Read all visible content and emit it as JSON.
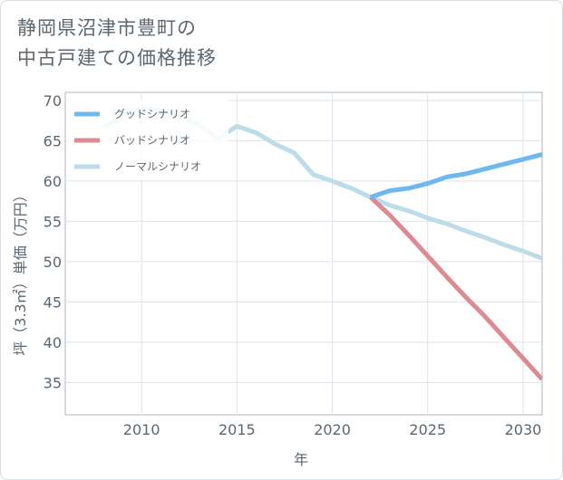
{
  "title": {
    "line1": "静岡県沼津市豊町の",
    "line2": "中古戸建ての価格推移"
  },
  "chart_data": {
    "type": "line",
    "xlabel": "年",
    "ylabel": "坪（3.3㎡）単価（万円）",
    "xlim": [
      2006,
      2031
    ],
    "ylim": [
      31,
      71
    ],
    "xticks": [
      2010,
      2015,
      2020,
      2025,
      2030
    ],
    "yticks": [
      35,
      40,
      45,
      50,
      55,
      60,
      65,
      70
    ],
    "grid": true,
    "legend_position": "top-left",
    "series": [
      {
        "name": "グッドシナリオ",
        "color": "#6cb8ef",
        "points": [
          [
            2022,
            58.0
          ],
          [
            2023,
            58.8
          ],
          [
            2024,
            59.1
          ],
          [
            2025,
            59.7
          ],
          [
            2026,
            60.5
          ],
          [
            2027,
            60.9
          ],
          [
            2028,
            61.5
          ],
          [
            2029,
            62.1
          ],
          [
            2030,
            62.7
          ],
          [
            2031,
            63.3
          ]
        ]
      },
      {
        "name": "バッドシナリオ",
        "color": "#de8a92",
        "points": [
          [
            2022,
            58.0
          ],
          [
            2023,
            55.8
          ],
          [
            2024,
            53.3
          ],
          [
            2025,
            50.7
          ],
          [
            2026,
            48.1
          ],
          [
            2027,
            45.6
          ],
          [
            2028,
            43.2
          ],
          [
            2029,
            40.6
          ],
          [
            2030,
            38.0
          ],
          [
            2031,
            35.4
          ]
        ]
      },
      {
        "name": "ノーマルシナリオ",
        "color": "#bcdcea",
        "points": [
          [
            2008,
            66.6
          ],
          [
            2009,
            68.2
          ],
          [
            2010,
            69.0
          ],
          [
            2011,
            68.8
          ],
          [
            2012,
            68.0
          ],
          [
            2013,
            67.0
          ],
          [
            2014,
            65.3
          ],
          [
            2015,
            66.8
          ],
          [
            2016,
            66.0
          ],
          [
            2017,
            64.6
          ],
          [
            2018,
            63.5
          ],
          [
            2019,
            60.8
          ],
          [
            2020,
            60.0
          ],
          [
            2021,
            59.1
          ],
          [
            2022,
            58.0
          ],
          [
            2023,
            57.0
          ],
          [
            2024,
            56.3
          ],
          [
            2025,
            55.4
          ],
          [
            2026,
            54.7
          ],
          [
            2027,
            53.8
          ],
          [
            2028,
            53.0
          ],
          [
            2029,
            52.1
          ],
          [
            2030,
            51.3
          ],
          [
            2031,
            50.4
          ]
        ]
      }
    ]
  }
}
